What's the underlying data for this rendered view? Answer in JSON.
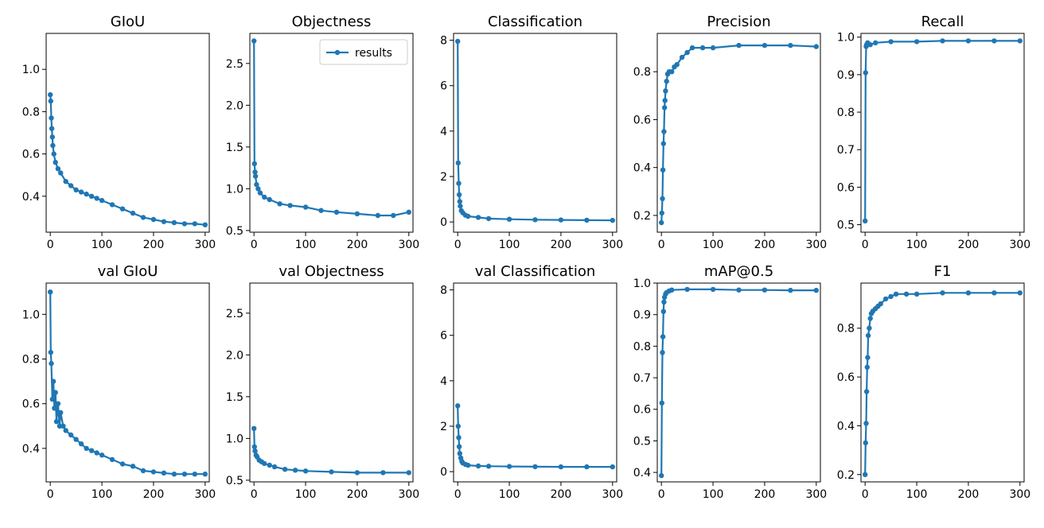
{
  "figure": {
    "legend": {
      "label": "results",
      "placement": "upper right",
      "panel": "Objectness"
    },
    "series_color": "#1f77b4"
  },
  "chart_data": [
    {
      "type": "line",
      "title": "GIoU",
      "xlim": [
        -8,
        308
      ],
      "ylim": [
        0.23,
        1.17
      ],
      "xticks": [
        0,
        100,
        200,
        300
      ],
      "yticks": [
        0.4,
        0.6,
        0.8,
        1.0
      ],
      "ytick_labels": [
        "0.4",
        "0.6",
        "0.8",
        "1.0"
      ],
      "series": [
        {
          "values": [
            [
              0,
              0.88
            ],
            [
              1,
              0.85
            ],
            [
              2,
              0.77
            ],
            [
              3,
              0.72
            ],
            [
              4,
              0.68
            ],
            [
              5,
              0.64
            ],
            [
              7,
              0.6
            ],
            [
              10,
              0.56
            ],
            [
              15,
              0.53
            ],
            [
              20,
              0.51
            ],
            [
              30,
              0.47
            ],
            [
              40,
              0.45
            ],
            [
              50,
              0.43
            ],
            [
              60,
              0.42
            ],
            [
              70,
              0.41
            ],
            [
              80,
              0.4
            ],
            [
              90,
              0.39
            ],
            [
              100,
              0.38
            ],
            [
              120,
              0.36
            ],
            [
              140,
              0.34
            ],
            [
              160,
              0.32
            ],
            [
              180,
              0.3
            ],
            [
              200,
              0.29
            ],
            [
              220,
              0.28
            ],
            [
              240,
              0.275
            ],
            [
              260,
              0.27
            ],
            [
              280,
              0.27
            ],
            [
              300,
              0.265
            ]
          ]
        }
      ]
    },
    {
      "type": "line",
      "title": "Objectness",
      "xlim": [
        -8,
        308
      ],
      "ylim": [
        0.48,
        2.86
      ],
      "xticks": [
        0,
        100,
        200,
        300
      ],
      "yticks": [
        0.5,
        1.0,
        1.5,
        2.0,
        2.5
      ],
      "ytick_labels": [
        "0.5",
        "1.0",
        "1.5",
        "2.0",
        "2.5"
      ],
      "series": [
        {
          "name": "results",
          "values": [
            [
              0,
              2.77
            ],
            [
              1,
              1.3
            ],
            [
              2,
              1.2
            ],
            [
              3,
              1.15
            ],
            [
              5,
              1.05
            ],
            [
              8,
              1.0
            ],
            [
              12,
              0.95
            ],
            [
              20,
              0.9
            ],
            [
              30,
              0.87
            ],
            [
              50,
              0.82
            ],
            [
              70,
              0.8
            ],
            [
              100,
              0.78
            ],
            [
              130,
              0.74
            ],
            [
              160,
              0.72
            ],
            [
              200,
              0.7
            ],
            [
              240,
              0.68
            ],
            [
              270,
              0.68
            ],
            [
              300,
              0.72
            ]
          ]
        }
      ]
    },
    {
      "type": "line",
      "title": "Classification",
      "xlim": [
        -8,
        308
      ],
      "ylim": [
        -0.45,
        8.3
      ],
      "xticks": [
        0,
        100,
        200,
        300
      ],
      "yticks": [
        0,
        2,
        4,
        6,
        8
      ],
      "ytick_labels": [
        "0",
        "2",
        "4",
        "6",
        "8"
      ],
      "series": [
        {
          "values": [
            [
              0,
              7.95
            ],
            [
              1,
              2.6
            ],
            [
              2,
              1.7
            ],
            [
              3,
              1.2
            ],
            [
              4,
              0.9
            ],
            [
              5,
              0.7
            ],
            [
              7,
              0.5
            ],
            [
              10,
              0.4
            ],
            [
              15,
              0.3
            ],
            [
              20,
              0.25
            ],
            [
              40,
              0.2
            ],
            [
              60,
              0.15
            ],
            [
              100,
              0.12
            ],
            [
              150,
              0.1
            ],
            [
              200,
              0.09
            ],
            [
              250,
              0.08
            ],
            [
              300,
              0.07
            ]
          ]
        }
      ]
    },
    {
      "type": "line",
      "title": "Precision",
      "xlim": [
        -8,
        308
      ],
      "ylim": [
        0.13,
        0.96
      ],
      "xticks": [
        0,
        100,
        200,
        300
      ],
      "yticks": [
        0.2,
        0.4,
        0.6,
        0.8
      ],
      "ytick_labels": [
        "0.2",
        "0.4",
        "0.6",
        "0.8"
      ],
      "series": [
        {
          "values": [
            [
              0,
              0.17
            ],
            [
              1,
              0.21
            ],
            [
              2,
              0.27
            ],
            [
              3,
              0.39
            ],
            [
              4,
              0.5
            ],
            [
              5,
              0.55
            ],
            [
              6,
              0.65
            ],
            [
              7,
              0.68
            ],
            [
              8,
              0.72
            ],
            [
              10,
              0.76
            ],
            [
              12,
              0.79
            ],
            [
              15,
              0.8
            ],
            [
              20,
              0.8
            ],
            [
              25,
              0.82
            ],
            [
              30,
              0.83
            ],
            [
              40,
              0.86
            ],
            [
              50,
              0.88
            ],
            [
              60,
              0.9
            ],
            [
              80,
              0.9
            ],
            [
              100,
              0.9
            ],
            [
              150,
              0.91
            ],
            [
              200,
              0.91
            ],
            [
              250,
              0.91
            ],
            [
              300,
              0.905
            ]
          ]
        }
      ]
    },
    {
      "type": "line",
      "title": "Recall",
      "xlim": [
        -8,
        308
      ],
      "ylim": [
        0.48,
        1.01
      ],
      "xticks": [
        0,
        100,
        200,
        300
      ],
      "yticks": [
        0.5,
        0.6,
        0.7,
        0.8,
        0.9,
        1.0
      ],
      "ytick_labels": [
        "0.5",
        "0.6",
        "0.7",
        "0.8",
        "0.9",
        "1.0"
      ],
      "series": [
        {
          "values": [
            [
              0,
              0.51
            ],
            [
              1,
              0.905
            ],
            [
              2,
              0.975
            ],
            [
              3,
              0.98
            ],
            [
              5,
              0.985
            ],
            [
              10,
              0.98
            ],
            [
              20,
              0.985
            ],
            [
              50,
              0.988
            ],
            [
              100,
              0.988
            ],
            [
              150,
              0.99
            ],
            [
              200,
              0.99
            ],
            [
              250,
              0.99
            ],
            [
              300,
              0.99
            ]
          ]
        }
      ]
    },
    {
      "type": "line",
      "title": "val GIoU",
      "xlim": [
        -8,
        308
      ],
      "ylim": [
        0.25,
        1.14
      ],
      "xticks": [
        0,
        100,
        200,
        300
      ],
      "yticks": [
        0.4,
        0.6,
        0.8,
        1.0
      ],
      "ytick_labels": [
        "0.4",
        "0.6",
        "0.8",
        "1.0"
      ],
      "series": [
        {
          "values": [
            [
              0,
              1.1
            ],
            [
              1,
              0.83
            ],
            [
              2,
              0.78
            ],
            [
              4,
              0.62
            ],
            [
              6,
              0.7
            ],
            [
              8,
              0.58
            ],
            [
              10,
              0.65
            ],
            [
              12,
              0.52
            ],
            [
              15,
              0.6
            ],
            [
              18,
              0.5
            ],
            [
              20,
              0.56
            ],
            [
              25,
              0.5
            ],
            [
              30,
              0.48
            ],
            [
              40,
              0.46
            ],
            [
              50,
              0.44
            ],
            [
              60,
              0.42
            ],
            [
              70,
              0.4
            ],
            [
              80,
              0.39
            ],
            [
              90,
              0.38
            ],
            [
              100,
              0.37
            ],
            [
              120,
              0.35
            ],
            [
              140,
              0.33
            ],
            [
              160,
              0.32
            ],
            [
              180,
              0.3
            ],
            [
              200,
              0.295
            ],
            [
              220,
              0.29
            ],
            [
              240,
              0.285
            ],
            [
              260,
              0.285
            ],
            [
              280,
              0.285
            ],
            [
              300,
              0.285
            ]
          ]
        }
      ]
    },
    {
      "type": "line",
      "title": "val Objectness",
      "xlim": [
        -8,
        308
      ],
      "ylim": [
        0.48,
        2.86
      ],
      "xticks": [
        0,
        100,
        200,
        300
      ],
      "yticks": [
        0.5,
        1.0,
        1.5,
        2.0,
        2.5
      ],
      "ytick_labels": [
        "0.5",
        "1.0",
        "1.5",
        "2.0",
        "2.5"
      ],
      "series": [
        {
          "values": [
            [
              0,
              1.12
            ],
            [
              1,
              0.9
            ],
            [
              2,
              0.85
            ],
            [
              4,
              0.8
            ],
            [
              6,
              0.78
            ],
            [
              10,
              0.74
            ],
            [
              15,
              0.72
            ],
            [
              20,
              0.7
            ],
            [
              30,
              0.68
            ],
            [
              40,
              0.66
            ],
            [
              60,
              0.63
            ],
            [
              80,
              0.62
            ],
            [
              100,
              0.61
            ],
            [
              150,
              0.6
            ],
            [
              200,
              0.59
            ],
            [
              250,
              0.59
            ],
            [
              300,
              0.59
            ]
          ]
        }
      ]
    },
    {
      "type": "line",
      "title": "val Classification",
      "xlim": [
        -8,
        308
      ],
      "ylim": [
        -0.45,
        8.3
      ],
      "xticks": [
        0,
        100,
        200,
        300
      ],
      "yticks": [
        0,
        2,
        4,
        6,
        8
      ],
      "ytick_labels": [
        "0",
        "2",
        "4",
        "6",
        "8"
      ],
      "series": [
        {
          "values": [
            [
              0,
              2.9
            ],
            [
              1,
              2.0
            ],
            [
              2,
              1.5
            ],
            [
              3,
              1.1
            ],
            [
              4,
              0.8
            ],
            [
              6,
              0.6
            ],
            [
              8,
              0.45
            ],
            [
              10,
              0.38
            ],
            [
              15,
              0.32
            ],
            [
              20,
              0.28
            ],
            [
              40,
              0.25
            ],
            [
              60,
              0.24
            ],
            [
              100,
              0.23
            ],
            [
              150,
              0.22
            ],
            [
              200,
              0.21
            ],
            [
              250,
              0.21
            ],
            [
              300,
              0.21
            ]
          ]
        }
      ]
    },
    {
      "type": "line",
      "title": "mAP@0.5",
      "xlim": [
        -8,
        308
      ],
      "ylim": [
        0.37,
        1.0
      ],
      "xticks": [
        0,
        100,
        200,
        300
      ],
      "yticks": [
        0.4,
        0.5,
        0.6,
        0.7,
        0.8,
        0.9,
        1.0
      ],
      "ytick_labels": [
        "0.4",
        "0.5",
        "0.6",
        "0.7",
        "0.8",
        "0.9",
        "1.0"
      ],
      "series": [
        {
          "values": [
            [
              0,
              0.39
            ],
            [
              1,
              0.62
            ],
            [
              2,
              0.78
            ],
            [
              3,
              0.83
            ],
            [
              4,
              0.91
            ],
            [
              5,
              0.94
            ],
            [
              6,
              0.955
            ],
            [
              8,
              0.965
            ],
            [
              10,
              0.97
            ],
            [
              15,
              0.975
            ],
            [
              20,
              0.978
            ],
            [
              50,
              0.98
            ],
            [
              100,
              0.98
            ],
            [
              150,
              0.978
            ],
            [
              200,
              0.978
            ],
            [
              250,
              0.977
            ],
            [
              300,
              0.977
            ]
          ]
        }
      ]
    },
    {
      "type": "line",
      "title": "F1",
      "xlim": [
        -8,
        308
      ],
      "ylim": [
        0.17,
        0.985
      ],
      "xticks": [
        0,
        100,
        200,
        300
      ],
      "yticks": [
        0.2,
        0.4,
        0.6,
        0.8
      ],
      "ytick_labels": [
        "0.2",
        "0.4",
        "0.6",
        "0.8"
      ],
      "series": [
        {
          "values": [
            [
              0,
              0.2
            ],
            [
              1,
              0.33
            ],
            [
              2,
              0.41
            ],
            [
              3,
              0.54
            ],
            [
              4,
              0.64
            ],
            [
              5,
              0.68
            ],
            [
              6,
              0.77
            ],
            [
              8,
              0.8
            ],
            [
              10,
              0.84
            ],
            [
              12,
              0.86
            ],
            [
              15,
              0.87
            ],
            [
              20,
              0.88
            ],
            [
              25,
              0.89
            ],
            [
              30,
              0.9
            ],
            [
              40,
              0.92
            ],
            [
              50,
              0.93
            ],
            [
              60,
              0.94
            ],
            [
              80,
              0.94
            ],
            [
              100,
              0.94
            ],
            [
              150,
              0.945
            ],
            [
              200,
              0.945
            ],
            [
              250,
              0.945
            ],
            [
              300,
              0.945
            ]
          ]
        }
      ]
    }
  ]
}
